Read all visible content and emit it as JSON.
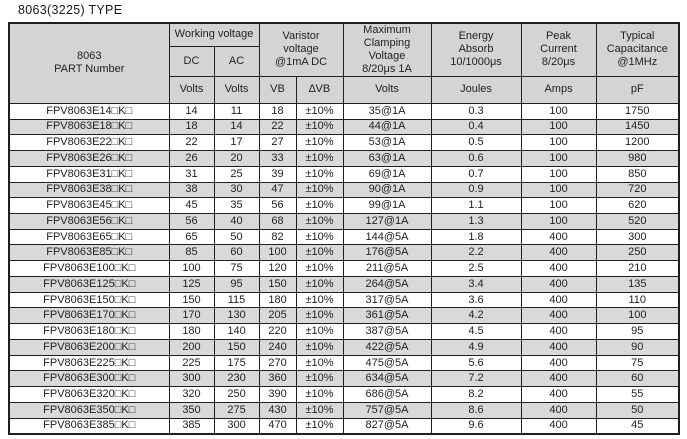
{
  "page_title": "8063(3225) TYPE",
  "colors": {
    "header_bg": "#d4d4d4",
    "alt_row_bg": "#d9d9d9",
    "border": "#1f1f1f",
    "text": "#1f1f1f",
    "page_bg": "#ffffff"
  },
  "table": {
    "header": {
      "part_number": "8063\nPART Number",
      "working_voltage": "Working voltage",
      "dc": "DC",
      "ac": "AC",
      "varistor_voltage": "Varistor\nvoltage\n@1mA DC",
      "max_clamping": "Maximum\nClamping\nVoltage\n8/20μs 1A",
      "energy_absorb": "Energy\nAbsorb\n10/1000μs",
      "peak_current": "Peak\nCurrent\n8/20μs",
      "typical_capacitance": "Typical\nCapacitance\n@1MHz"
    },
    "units": [
      "Volts",
      "Volts",
      "VB",
      "∆VB",
      "Volts",
      "Joules",
      "Amps",
      "pF"
    ],
    "rows": [
      [
        "FPV8063E14□K□",
        "14",
        "11",
        "18",
        "±10%",
        "35@1A",
        "0.3",
        "100",
        "1750"
      ],
      [
        "FPV8063E18□K□",
        "18",
        "14",
        "22",
        "±10%",
        "44@1A",
        "0.4",
        "100",
        "1450"
      ],
      [
        "FPV8063E22□K□",
        "22",
        "17",
        "27",
        "±10%",
        "53@1A",
        "0.5",
        "100",
        "1200"
      ],
      [
        "FPV8063E26□K□",
        "26",
        "20",
        "33",
        "±10%",
        "63@1A",
        "0.6",
        "100",
        "980"
      ],
      [
        "FPV8063E31□K□",
        "31",
        "25",
        "39",
        "±10%",
        "69@1A",
        "0.7",
        "100",
        "850"
      ],
      [
        "FPV8063E38□K□",
        "38",
        "30",
        "47",
        "±10%",
        "90@1A",
        "0.9",
        "100",
        "720"
      ],
      [
        "FPV8063E45□K□",
        "45",
        "35",
        "56",
        "±10%",
        "99@1A",
        "1.1",
        "100",
        "620"
      ],
      [
        "FPV8063E56□K□",
        "56",
        "40",
        "68",
        "±10%",
        "127@1A",
        "1.3",
        "100",
        "520"
      ],
      [
        "FPV8063E65□K□",
        "65",
        "50",
        "82",
        "±10%",
        "144@5A",
        "1.8",
        "400",
        "300"
      ],
      [
        "FPV8063E85□K□",
        "85",
        "60",
        "100",
        "±10%",
        "176@5A",
        "2.2",
        "400",
        "250"
      ],
      [
        "FPV8063E100□K□",
        "100",
        "75",
        "120",
        "±10%",
        "211@5A",
        "2.5",
        "400",
        "210"
      ],
      [
        "FPV8063E125□K□",
        "125",
        "95",
        "150",
        "±10%",
        "264@5A",
        "3.4",
        "400",
        "135"
      ],
      [
        "FPV8063E150□K□",
        "150",
        "115",
        "180",
        "±10%",
        "317@5A",
        "3.6",
        "400",
        "110"
      ],
      [
        "FPV8063E170□K□",
        "170",
        "130",
        "205",
        "±10%",
        "361@5A",
        "4.2",
        "400",
        "100"
      ],
      [
        "FPV8063E180□K□",
        "180",
        "140",
        "220",
        "±10%",
        "387@5A",
        "4.5",
        "400",
        "95"
      ],
      [
        "FPV8063E200□K□",
        "200",
        "150",
        "240",
        "±10%",
        "422@5A",
        "4.9",
        "400",
        "90"
      ],
      [
        "FPV8063E225□K□",
        "225",
        "175",
        "270",
        "±10%",
        "475@5A",
        "5.6",
        "400",
        "75"
      ],
      [
        "FPV8063E300□K□",
        "300",
        "230",
        "360",
        "±10%",
        "634@5A",
        "7.2",
        "400",
        "60"
      ],
      [
        "FPV8063E320□K□",
        "320",
        "250",
        "390",
        "±10%",
        "686@5A",
        "8.2",
        "400",
        "55"
      ],
      [
        "FPV8063E350□K□",
        "350",
        "275",
        "430",
        "±10%",
        "757@5A",
        "8.6",
        "400",
        "50"
      ],
      [
        "FPV8063E385□K□",
        "385",
        "300",
        "470",
        "±10%",
        "827@5A",
        "9.6",
        "400",
        "45"
      ]
    ]
  }
}
